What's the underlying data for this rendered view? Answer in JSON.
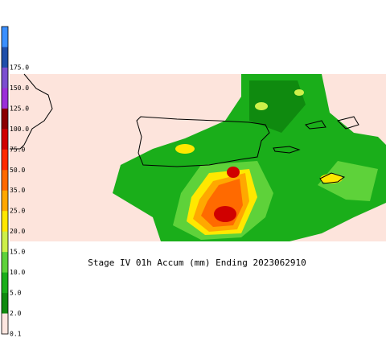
{
  "legend": {
    "levels": [
      {
        "label": null,
        "color": "#3a8fff"
      },
      {
        "label": "175.0",
        "color": "#1f4faa"
      },
      {
        "label": "150.0",
        "color": "#7a4fd0"
      },
      {
        "label": "125.0",
        "color": "#9a2fd8"
      },
      {
        "label": "100.0",
        "color": "#8a0000"
      },
      {
        "label": "75.0",
        "color": "#d00000"
      },
      {
        "label": "50.0",
        "color": "#ff2a00"
      },
      {
        "label": "35.0",
        "color": "#ff6a00"
      },
      {
        "label": "25.0",
        "color": "#ffa800"
      },
      {
        "label": "20.0",
        "color": "#ffe800"
      },
      {
        "label": "15.0",
        "color": "#cdf04a"
      },
      {
        "label": "10.0",
        "color": "#5ed23a"
      },
      {
        "label": "5.0",
        "color": "#1aae1a"
      },
      {
        "label": "2.0",
        "color": "#0f8a0f"
      },
      {
        "label": "0.1",
        "color": "#fde6e0"
      }
    ]
  },
  "caption": "Stage IV 01h Accum (mm) Ending 2023062910"
}
